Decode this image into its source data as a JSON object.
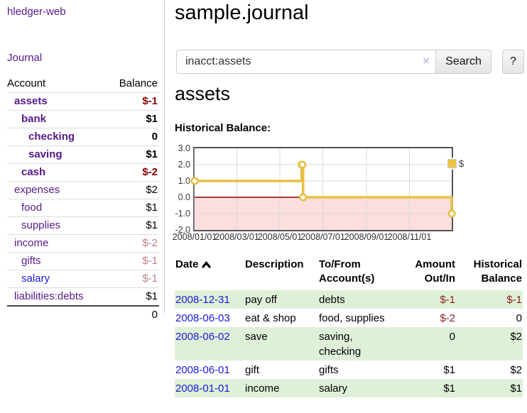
{
  "app_title": "hledger-web",
  "sidebar": {
    "journal_label": "Journal",
    "header": {
      "account": "Account",
      "balance": "Balance"
    },
    "accounts": [
      {
        "name": "assets",
        "level": 1,
        "bold": true,
        "link": "visited",
        "balance": "$-1",
        "balance_tone": "neg-strong"
      },
      {
        "name": "bank",
        "level": 2,
        "bold": true,
        "link": "visited",
        "balance": "$1",
        "balance_tone": "plain"
      },
      {
        "name": "checking",
        "level": 3,
        "bold": true,
        "link": "visited",
        "balance": "0",
        "balance_tone": "plain"
      },
      {
        "name": "saving",
        "level": 3,
        "bold": true,
        "link": "visited",
        "balance": "$1",
        "balance_tone": "plain"
      },
      {
        "name": "cash",
        "level": 2,
        "bold": true,
        "link": "visited",
        "balance": "$-2",
        "balance_tone": "neg-strong"
      },
      {
        "name": "expenses",
        "level": 1,
        "bold": false,
        "link": "visited",
        "balance": "$2",
        "balance_tone": "plain"
      },
      {
        "name": "food",
        "level": 2,
        "bold": false,
        "link": "visited",
        "balance": "$1",
        "balance_tone": "plain"
      },
      {
        "name": "supplies",
        "level": 2,
        "bold": false,
        "link": "visited",
        "balance": "$1",
        "balance_tone": "plain"
      },
      {
        "name": "income",
        "level": 1,
        "bold": false,
        "link": "visited",
        "balance": "$-2",
        "balance_tone": "neg-soft"
      },
      {
        "name": "gifts",
        "level": 2,
        "bold": false,
        "link": "visited",
        "balance": "$-1",
        "balance_tone": "neg-soft"
      },
      {
        "name": "salary",
        "level": 2,
        "bold": false,
        "link": "unvisited",
        "balance": "$-1",
        "balance_tone": "neg-soft"
      },
      {
        "name": "liabilities:debts",
        "level": 1,
        "bold": false,
        "link": "visited",
        "balance": "$1",
        "balance_tone": "plain"
      }
    ],
    "total": "0"
  },
  "main": {
    "title": "sample.journal",
    "search": {
      "value": "inacct:assets",
      "clear_icon": "×",
      "search_button": "Search",
      "help_button": "?"
    },
    "account_heading": "assets",
    "chart_title": "Historical Balance:"
  },
  "chart_data": {
    "type": "line",
    "step": true,
    "title": "Historical Balance:",
    "x_range": [
      "2008-01-01",
      "2008-12-31"
    ],
    "ylim": [
      -2,
      3
    ],
    "grid": true,
    "y_ticks": [
      {
        "v": 3,
        "label": "3.0"
      },
      {
        "v": 2,
        "label": "2.0"
      },
      {
        "v": 1,
        "label": "1.0"
      },
      {
        "v": 0,
        "label": "0.0"
      },
      {
        "v": -1,
        "label": "-1.0"
      },
      {
        "v": -2,
        "label": "-2.0"
      }
    ],
    "x_ticks": [
      {
        "date": "2008-01-01",
        "label": "2008/01/01"
      },
      {
        "date": "2008-03-01",
        "label": "2008/03/01"
      },
      {
        "date": "2008-05-01",
        "label": "2008/05/01"
      },
      {
        "date": "2008-07-01",
        "label": "2008/07/01"
      },
      {
        "date": "2008-09-01",
        "label": "2008/09/01"
      },
      {
        "date": "2008-11-01",
        "label": "2008/11/01"
      }
    ],
    "series": [
      {
        "name": "$",
        "color": "#e6c143",
        "points": [
          {
            "date": "2008-01-01",
            "value": 1
          },
          {
            "date": "2008-06-01",
            "value": 2
          },
          {
            "date": "2008-06-02",
            "value": 2
          },
          {
            "date": "2008-06-03",
            "value": 0
          },
          {
            "date": "2008-12-31",
            "value": -1
          }
        ]
      }
    ],
    "legend": {
      "position": "top-right",
      "label": "$",
      "swatch_color": "#edc240"
    },
    "negative_region_color": "#fcdede",
    "zero_line_color": "#8b0000",
    "gridline_color": "#d9d9d9"
  },
  "register": {
    "headers": {
      "date": "Date",
      "description": "Description",
      "accounts": "To/From Account(s)",
      "amount": "Amount Out/In",
      "balance": "Historical Balance"
    },
    "rows": [
      {
        "date": "2008-12-31",
        "description": "pay off",
        "accounts": "debts",
        "amount": "$-1",
        "balance": "$-1"
      },
      {
        "date": "2008-06-03",
        "description": "eat & shop",
        "accounts": "food, supplies",
        "amount": "$-2",
        "balance": "0"
      },
      {
        "date": "2008-06-02",
        "description": "save",
        "accounts": "saving, checking",
        "amount": "0",
        "balance": "$2"
      },
      {
        "date": "2008-06-01",
        "description": "gift",
        "accounts": "gifts",
        "amount": "$1",
        "balance": "$2"
      },
      {
        "date": "2008-01-01",
        "description": "income",
        "accounts": "salary",
        "amount": "$1",
        "balance": "$1"
      }
    ]
  }
}
